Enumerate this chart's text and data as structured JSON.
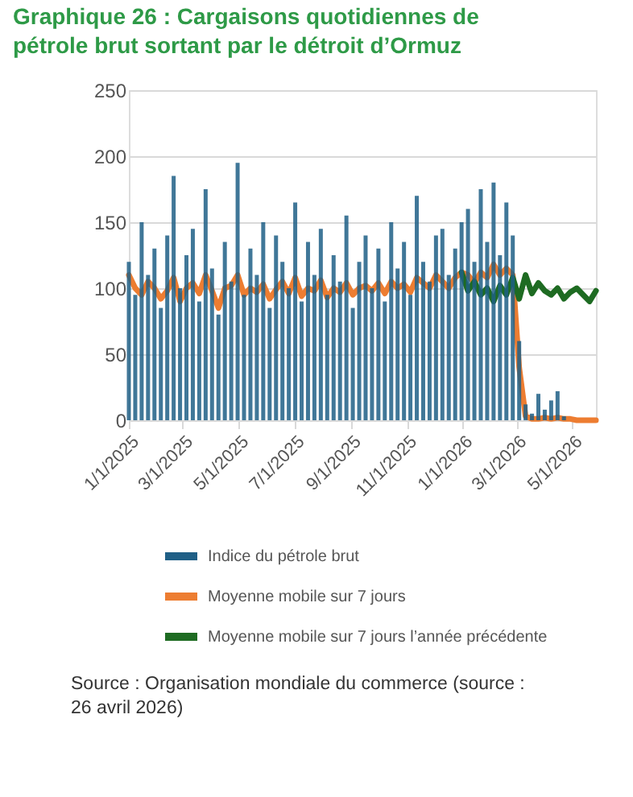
{
  "chart_data": {
    "type": "bar",
    "title": "Graphique 26 : Cargaisons quotidiennes de pétrole brut sortant par le détroit d’Ormuz",
    "x": [
      "2025-01-01",
      "2025-01-08",
      "2025-01-15",
      "2025-01-22",
      "2025-01-29",
      "2025-02-05",
      "2025-02-12",
      "2025-02-19",
      "2025-02-26",
      "2025-03-05",
      "2025-03-12",
      "2025-03-19",
      "2025-03-26",
      "2025-04-02",
      "2025-04-09",
      "2025-04-16",
      "2025-04-23",
      "2025-04-30",
      "2025-05-07",
      "2025-05-14",
      "2025-05-21",
      "2025-05-28",
      "2025-06-04",
      "2025-06-11",
      "2025-06-18",
      "2025-06-25",
      "2025-07-02",
      "2025-07-09",
      "2025-07-16",
      "2025-07-23",
      "2025-07-30",
      "2025-08-06",
      "2025-08-13",
      "2025-08-20",
      "2025-08-27",
      "2025-09-03",
      "2025-09-10",
      "2025-09-17",
      "2025-09-24",
      "2025-10-01",
      "2025-10-08",
      "2025-10-15",
      "2025-10-22",
      "2025-10-29",
      "2025-11-05",
      "2025-11-12",
      "2025-11-19",
      "2025-11-26",
      "2025-12-03",
      "2025-12-10",
      "2025-12-17",
      "2025-12-24",
      "2025-12-31",
      "2026-01-07",
      "2026-01-14",
      "2026-01-21",
      "2026-01-28",
      "2026-02-04",
      "2026-02-11",
      "2026-02-18",
      "2026-02-25",
      "2026-03-04",
      "2026-03-11",
      "2026-03-18",
      "2026-03-25",
      "2026-04-01",
      "2026-04-08",
      "2026-04-15",
      "2026-04-22",
      "2026-04-29",
      "2026-05-06",
      "2026-05-13",
      "2026-05-20",
      "2026-05-27"
    ],
    "series": [
      {
        "name": "Indice du pétrole brut",
        "type": "bar",
        "color": "#1f5f86",
        "values": [
          120,
          95,
          150,
          110,
          130,
          85,
          140,
          185,
          100,
          125,
          145,
          90,
          175,
          115,
          80,
          135,
          105,
          195,
          95,
          130,
          110,
          150,
          85,
          140,
          120,
          100,
          165,
          90,
          135,
          110,
          145,
          95,
          125,
          105,
          155,
          85,
          120,
          140,
          100,
          130,
          90,
          150,
          115,
          135,
          95,
          170,
          120,
          105,
          140,
          145,
          110,
          130,
          150,
          160,
          120,
          175,
          135,
          180,
          125,
          165,
          140,
          60,
          12,
          5,
          20,
          8,
          15,
          22,
          3,
          null,
          null,
          null,
          null,
          null
        ]
      },
      {
        "name": "Moyenne mobile sur 7 jours",
        "type": "line",
        "color": "#ed7d31",
        "values": [
          110,
          100,
          95,
          105,
          100,
          92,
          98,
          108,
          90,
          100,
          104,
          96,
          110,
          98,
          85,
          100,
          102,
          110,
          95,
          100,
          97,
          103,
          92,
          99,
          105,
          96,
          108,
          94,
          100,
          98,
          106,
          93,
          100,
          97,
          104,
          95,
          100,
          102,
          98,
          104,
          96,
          105,
          100,
          103,
          97,
          108,
          104,
          100,
          110,
          105,
          100,
          108,
          112,
          110,
          104,
          112,
          108,
          118,
          110,
          115,
          110,
          40,
          3,
          1,
          1,
          2,
          1,
          2,
          1,
          1,
          0,
          0,
          0,
          0
        ]
      },
      {
        "name": "Moyenne mobile sur 7 jours l’année précédente",
        "type": "line",
        "color": "#1e6b22",
        "values": [
          null,
          null,
          null,
          null,
          null,
          null,
          null,
          null,
          null,
          null,
          null,
          null,
          null,
          null,
          null,
          null,
          null,
          null,
          null,
          null,
          null,
          null,
          null,
          null,
          null,
          null,
          null,
          null,
          null,
          null,
          null,
          null,
          null,
          null,
          null,
          null,
          null,
          null,
          null,
          null,
          null,
          null,
          null,
          null,
          null,
          null,
          null,
          null,
          null,
          null,
          null,
          null,
          112,
          98,
          105,
          95,
          100,
          90,
          102,
          95,
          108,
          92,
          110,
          96,
          104,
          98,
          95,
          100,
          92,
          97,
          100,
          95,
          90,
          98
        ]
      }
    ],
    "xlim": [
      "2025-01-01",
      "2026-05-27"
    ],
    "xticks": [
      {
        "value": "2025-01-01",
        "label": "1/1/2025"
      },
      {
        "value": "2025-03-01",
        "label": "3/1/2025"
      },
      {
        "value": "2025-05-01",
        "label": "5/1/2025"
      },
      {
        "value": "2025-07-01",
        "label": "7/1/2025"
      },
      {
        "value": "2025-09-01",
        "label": "9/1/2025"
      },
      {
        "value": "2025-11-01",
        "label": "11/1/2025"
      },
      {
        "value": "2026-01-01",
        "label": "1/1/2026"
      },
      {
        "value": "2026-03-01",
        "label": "3/1/2026"
      },
      {
        "value": "2026-05-01",
        "label": "5/1/2026"
      }
    ],
    "ylim": [
      0,
      250
    ],
    "yticks": [
      0,
      50,
      100,
      150,
      200,
      250
    ],
    "grid": "y",
    "legend": "bottom",
    "line_style": "solid",
    "marker": "none",
    "annotations": [
      "Source : Organisation mondiale du commerce (source : 26 avril 2026)"
    ]
  }
}
